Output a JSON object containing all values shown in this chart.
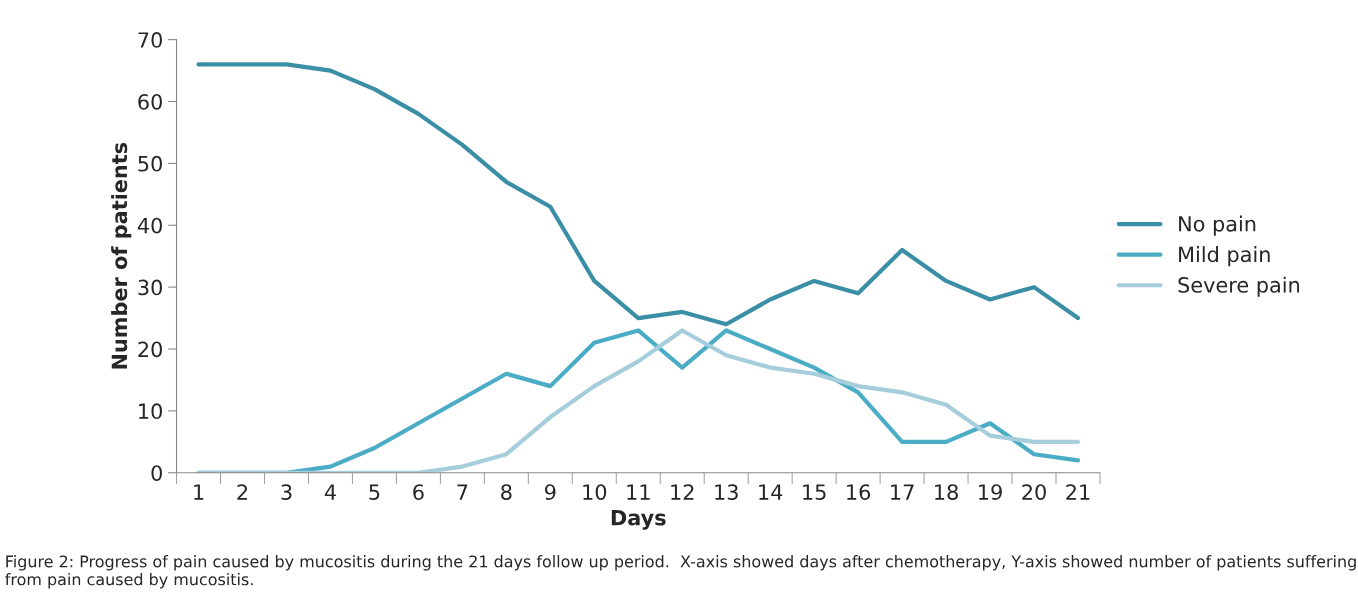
{
  "chart_data": {
    "type": "line",
    "xlabel": "Days",
    "ylabel": "Number of patients",
    "categories": [
      "1",
      "2",
      "3",
      "4",
      "5",
      "6",
      "7",
      "8",
      "9",
      "10",
      "11",
      "12",
      "13",
      "14",
      "15",
      "16",
      "17",
      "18",
      "19",
      "20",
      "21"
    ],
    "series": [
      {
        "name": "No pain",
        "color": "#3a8ea5",
        "values": [
          66,
          66,
          66,
          65,
          62,
          58,
          53,
          47,
          43,
          31,
          25,
          26,
          24,
          28,
          31,
          29,
          36,
          31,
          28,
          30,
          25
        ]
      },
      {
        "name": "Mild pain",
        "color": "#4bacc6",
        "values": [
          0,
          0,
          0,
          1,
          4,
          8,
          12,
          16,
          14,
          21,
          23,
          17,
          23,
          20,
          17,
          13,
          5,
          5,
          8,
          3,
          2
        ]
      },
      {
        "name": "Severe pain",
        "color": "#a5cddb",
        "values": [
          0,
          0,
          0,
          0,
          0,
          0,
          1,
          3,
          9,
          14,
          18,
          23,
          19,
          17,
          16,
          14,
          13,
          11,
          6,
          5,
          5
        ]
      }
    ],
    "ylim": [
      0,
      70
    ],
    "yticks": [
      0,
      10,
      20,
      30,
      40,
      50,
      60,
      70
    ],
    "grid": false,
    "legend": "right",
    "marker": "none",
    "line_style": "solid",
    "annotations": [
      "Figure 2: Progress of pain caused by mucositis during the 21 days follow up period.  X-axis showed days after chemotherapy, Y-axis showed number of patients suffering from pain caused by mucositis."
    ]
  }
}
